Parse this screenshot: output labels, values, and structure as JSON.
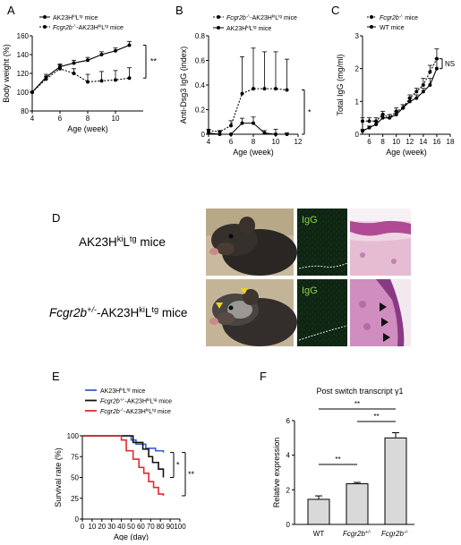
{
  "panels": {
    "A": {
      "label": "A",
      "legend": [
        {
          "prefix": "",
          "main": "AK23H",
          "sup1": "ki",
          "mid": "L",
          "sup2": "tg",
          "suffix": " mice"
        },
        {
          "prefix": "Fcgr2b",
          "prefix_sup": "-/-",
          "main": "-AK23H",
          "sup1": "ki",
          "mid": "L",
          "sup2": "tg",
          "suffix": " mice"
        }
      ],
      "significance": "**"
    },
    "B": {
      "label": "B",
      "legend": [
        {
          "prefix": "Fcgr2b",
          "prefix_sup": "-/-",
          "main": "-AK23H",
          "sup1": "ki",
          "mid": "L",
          "sup2": "tg",
          "suffix": " mice"
        },
        {
          "prefix": "",
          "main": "AK23H",
          "sup1": "ki",
          "mid": "L",
          "sup2": "tg",
          "suffix": " mice"
        }
      ],
      "significance": "*"
    },
    "C": {
      "label": "C",
      "legend": [
        {
          "prefix": "Fcgr2b",
          "prefix_sup": "-/-",
          "suffix": " mice"
        },
        {
          "prefix": "",
          "main": "WT",
          "suffix": " mice"
        }
      ],
      "significance": "NS"
    },
    "D": {
      "label": "D",
      "row1": {
        "main": "AK23H",
        "sup1": "ki",
        "mid": "L",
        "sup2": "tg",
        "suffix": " mice"
      },
      "row2": {
        "prefix": "Fcgr2b",
        "prefix_sup": "+/-",
        "main": "-AK23H",
        "sup1": "ki",
        "mid": "L",
        "sup2": "tg",
        "suffix": " mice"
      },
      "igg_label": "IgG"
    },
    "E": {
      "label": "E",
      "legend": [
        {
          "color": "#3a5fcd",
          "prefix": "",
          "main": "AK23H",
          "sup1": "ki",
          "mid": "L",
          "sup2": "tg",
          "suffix": " mice"
        },
        {
          "color": "#111111",
          "prefix": "Fcgr2b",
          "prefix_sup": "+/-",
          "main": "-AK23H",
          "sup1": "ki",
          "mid": "L",
          "sup2": "tg",
          "suffix": " mice"
        },
        {
          "color": "#e8262b",
          "prefix": "Fcgr2b",
          "prefix_sup": "-/-",
          "main": "-AK23H",
          "sup1": "ki",
          "mid": "L",
          "sup2": "tg",
          "suffix": " mice"
        }
      ],
      "sig_inner": "*",
      "sig_outer": "**"
    },
    "F": {
      "label": "F",
      "title": "Post switch transcript γ1",
      "sig": [
        "**",
        "**",
        "**"
      ]
    }
  },
  "chart_data": [
    {
      "id": "A",
      "type": "line",
      "xlabel": "Age (week)",
      "ylabel": "Body weight (%)",
      "xlim": [
        4,
        12
      ],
      "ylim": [
        80,
        160
      ],
      "xticks": [
        4,
        6,
        8,
        10
      ],
      "yticks": [
        80,
        100,
        120,
        140,
        160
      ],
      "series": [
        {
          "x": [
            4,
            5,
            6,
            7,
            8,
            9,
            10,
            11
          ],
          "y": [
            100,
            116,
            127,
            131,
            134,
            140,
            144,
            150
          ],
          "err": [
            0,
            3,
            3,
            3,
            3,
            3,
            3,
            4
          ],
          "style": "solid"
        },
        {
          "x": [
            4,
            5,
            6,
            7,
            8,
            9,
            10,
            11
          ],
          "y": [
            100,
            114,
            125,
            120,
            111,
            112,
            113,
            115
          ],
          "err": [
            0,
            3,
            4,
            5,
            8,
            10,
            10,
            11
          ],
          "style": "dashed"
        }
      ]
    },
    {
      "id": "B",
      "type": "line",
      "xlabel": "Age (week)",
      "ylabel": "Anti-Dsg3 IgG (index)",
      "xlim": [
        4,
        12
      ],
      "ylim": [
        0,
        0.8
      ],
      "xticks": [
        4,
        6,
        8,
        10,
        12
      ],
      "yticks": [
        0,
        0.2,
        0.4,
        0.6,
        0.8
      ],
      "series": [
        {
          "x": [
            4,
            5,
            6,
            7,
            8,
            9,
            10,
            11
          ],
          "y": [
            0.03,
            0.02,
            0.07,
            0.33,
            0.37,
            0.37,
            0.37,
            0.36
          ],
          "err": [
            0.01,
            0.01,
            0.04,
            0.3,
            0.33,
            0.3,
            0.3,
            0.25
          ],
          "style": "dashed"
        },
        {
          "x": [
            4,
            5,
            6,
            7,
            8,
            9,
            10,
            11
          ],
          "y": [
            0.01,
            0,
            0,
            0.09,
            0.09,
            0.01,
            0,
            0
          ],
          "err": [
            0,
            0,
            0,
            0.04,
            0.05,
            0.02,
            0.04,
            0.01
          ],
          "style": "solid"
        }
      ]
    },
    {
      "id": "C",
      "type": "line",
      "xlabel": "Age (week)",
      "ylabel": "Total IgG (mg/ml)",
      "xlim": [
        5,
        18
      ],
      "ylim": [
        0,
        3
      ],
      "xticks": [
        6,
        8,
        10,
        12,
        14,
        16,
        18
      ],
      "yticks": [
        0,
        1,
        2,
        3
      ],
      "series": [
        {
          "x": [
            5,
            6,
            7,
            8,
            9,
            10,
            11,
            12,
            13,
            14,
            15,
            16
          ],
          "y": [
            0.4,
            0.4,
            0.4,
            0.6,
            0.5,
            0.7,
            0.8,
            1.1,
            1.3,
            1.5,
            1.9,
            2.3
          ],
          "err": [
            0.1,
            0.1,
            0.1,
            0.1,
            0.1,
            0.1,
            0.1,
            0.1,
            0.1,
            0.2,
            0.2,
            0.3
          ],
          "style": "dashed"
        },
        {
          "x": [
            5,
            6,
            7,
            8,
            9,
            10,
            11,
            12,
            13,
            14,
            15,
            16
          ],
          "y": [
            0.1,
            0.2,
            0.3,
            0.5,
            0.5,
            0.6,
            0.8,
            1.0,
            1.1,
            1.3,
            1.5,
            2.0
          ],
          "err": [
            0.05,
            0.05,
            0.1,
            0.1,
            0.1,
            0.1,
            0.1,
            0.1,
            0.1,
            0.1,
            0.2,
            0.3
          ],
          "style": "solid"
        }
      ]
    },
    {
      "id": "E",
      "type": "line",
      "xlabel": "Age (day)",
      "ylabel": "Survival rate (%)",
      "xlim": [
        0,
        100
      ],
      "ylim": [
        0,
        100
      ],
      "xticks": [
        0,
        10,
        20,
        30,
        40,
        50,
        60,
        70,
        80,
        90,
        100
      ],
      "yticks": [
        0,
        25,
        50,
        75,
        100
      ],
      "series": [
        {
          "x": [
            0,
            40,
            50,
            55,
            65,
            75,
            83
          ],
          "y": [
            100,
            100,
            95,
            90,
            85,
            82,
            80
          ]
        },
        {
          "x": [
            0,
            45,
            52,
            62,
            68,
            72,
            78,
            83
          ],
          "y": [
            100,
            100,
            92,
            84,
            75,
            68,
            60,
            50
          ]
        },
        {
          "x": [
            0,
            40,
            45,
            52,
            58,
            63,
            68,
            73,
            78,
            83
          ],
          "y": [
            100,
            95,
            82,
            72,
            62,
            55,
            45,
            38,
            30,
            28
          ]
        }
      ]
    },
    {
      "id": "F",
      "type": "bar",
      "title": "Post switch transcript γ1",
      "ylabel": "Relative expression",
      "categories": [
        "WT",
        "Fcgr2b+/-",
        "Fcgr2b-/-"
      ],
      "values": [
        1.45,
        2.35,
        5.0
      ],
      "err": [
        0.2,
        0.08,
        0.3
      ],
      "ylim": [
        0,
        6
      ],
      "yticks": [
        0,
        2,
        4,
        6
      ]
    }
  ]
}
